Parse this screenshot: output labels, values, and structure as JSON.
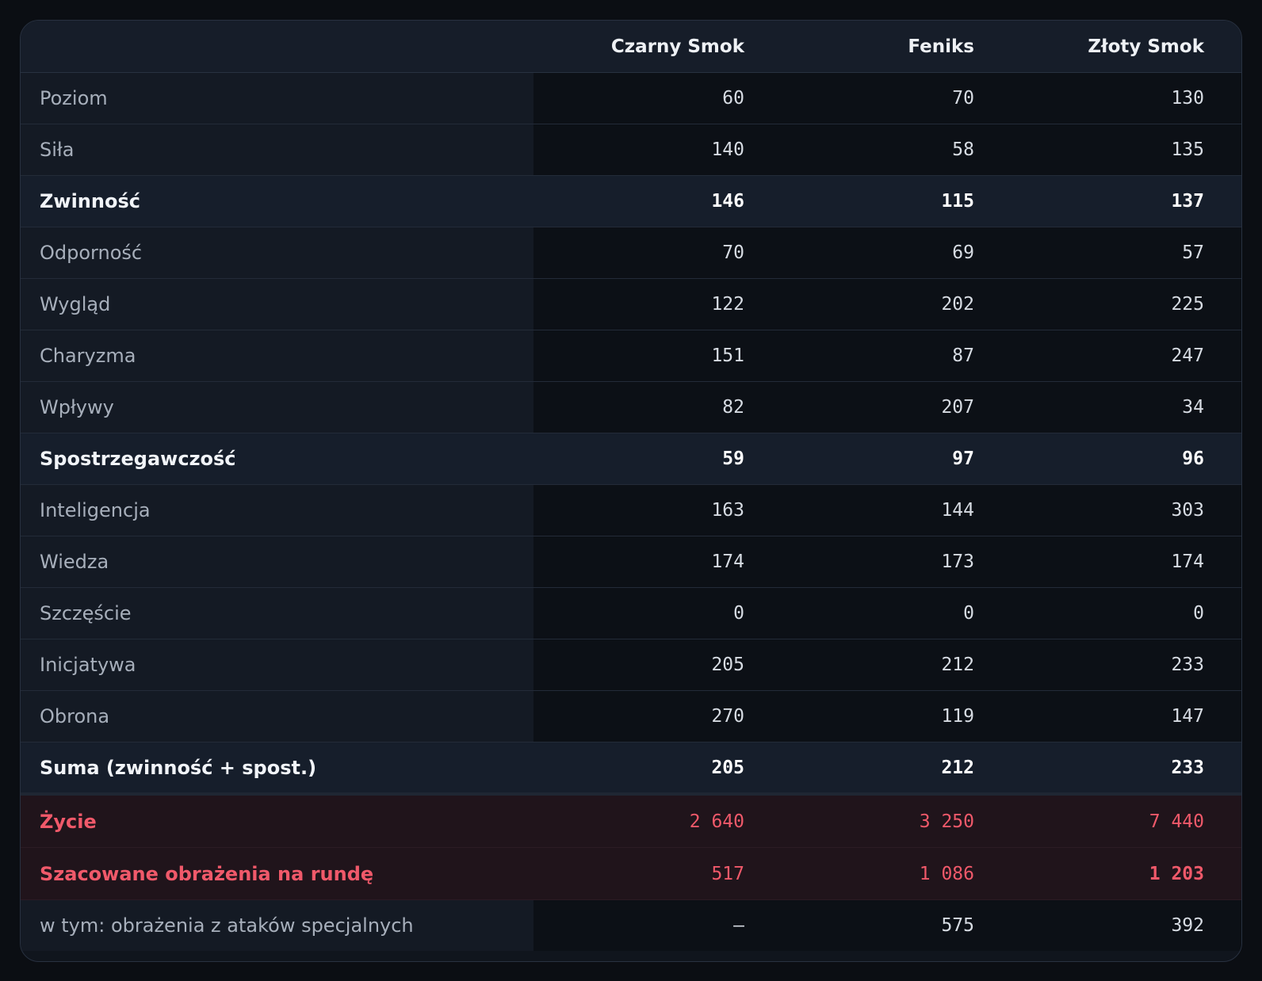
{
  "columns": [
    "Czarny Smok",
    "Feniks",
    "Złoty Smok"
  ],
  "rows": [
    {
      "label": "Poziom",
      "values": [
        "60",
        "70",
        "130"
      ]
    },
    {
      "label": "Siła",
      "values": [
        "140",
        "58",
        "135"
      ]
    },
    {
      "label": "Zwinność",
      "values": [
        "146",
        "115",
        "137"
      ]
    },
    {
      "label": "Odporność",
      "values": [
        "70",
        "69",
        "57"
      ]
    },
    {
      "label": "Wygląd",
      "values": [
        "122",
        "202",
        "225"
      ]
    },
    {
      "label": "Charyzma",
      "values": [
        "151",
        "87",
        "247"
      ]
    },
    {
      "label": "Wpływy",
      "values": [
        "82",
        "207",
        "34"
      ]
    },
    {
      "label": "Spostrzegawczość",
      "values": [
        "59",
        "97",
        "96"
      ]
    },
    {
      "label": "Inteligencja",
      "values": [
        "163",
        "144",
        "303"
      ]
    },
    {
      "label": "Wiedza",
      "values": [
        "174",
        "173",
        "174"
      ]
    },
    {
      "label": "Szczęście",
      "values": [
        "0",
        "0",
        "0"
      ]
    },
    {
      "label": "Inicjatywa",
      "values": [
        "205",
        "212",
        "233"
      ]
    },
    {
      "label": "Obrona",
      "values": [
        "270",
        "119",
        "147"
      ]
    },
    {
      "label": "Suma (zwinność + spost.)",
      "values": [
        "205",
        "212",
        "233"
      ]
    },
    {
      "label": "Życie",
      "values": [
        "2 640",
        "3 250",
        "7 440"
      ]
    },
    {
      "label": "Szacowane obrażenia na rundę",
      "values": [
        "517",
        "1 086",
        "1 203"
      ]
    },
    {
      "label": "w tym: obrażenia z ataków specjalnych",
      "values": [
        "—",
        "575",
        "392"
      ]
    }
  ]
}
